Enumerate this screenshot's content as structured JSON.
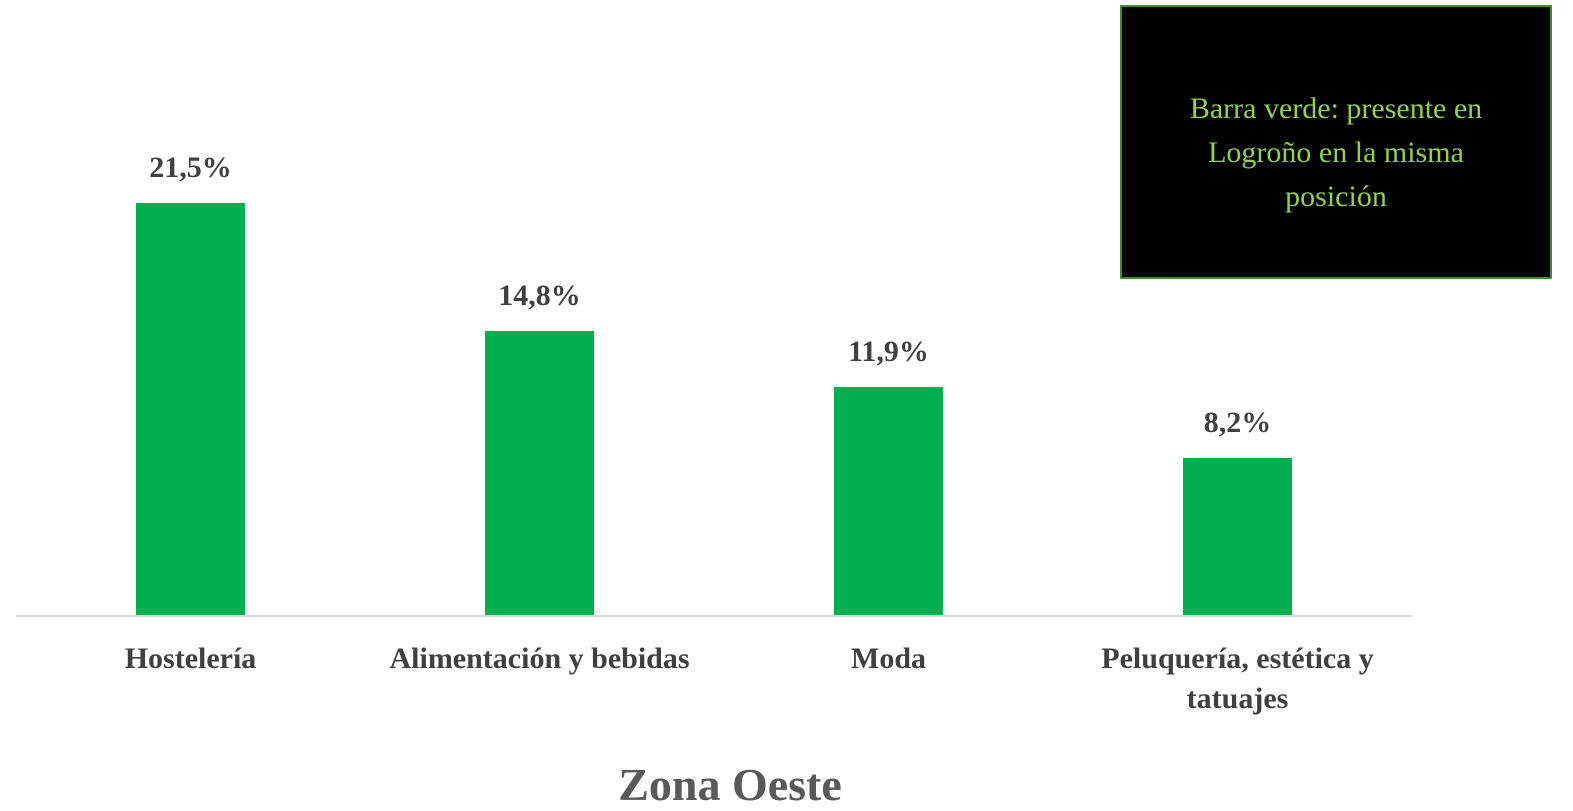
{
  "chart_data": {
    "type": "bar",
    "title": "Zona Oeste",
    "categories": [
      "Hostelería",
      "Alimentación y bebidas",
      "Moda",
      "Peluquería, estética y tatuajes"
    ],
    "values": [
      21.5,
      14.8,
      11.9,
      8.2
    ],
    "value_labels": [
      "21,5%",
      "14,8%",
      "11,9%",
      "8,2%"
    ],
    "color": "#00b050",
    "annotation": "Barra verde: presente en Logroño en la misma posición"
  }
}
